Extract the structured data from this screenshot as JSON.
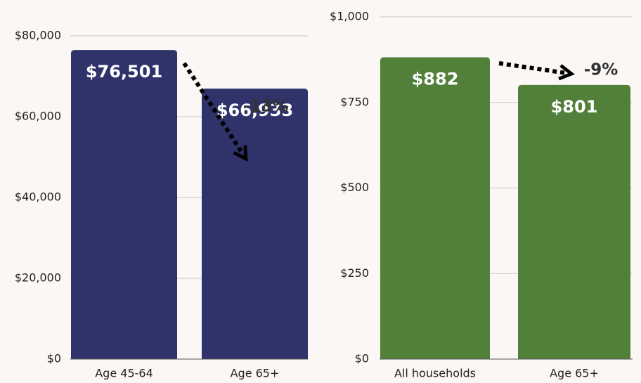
{
  "chart_data": [
    {
      "type": "bar",
      "categories": [
        "Age 45-64",
        "Age 65+"
      ],
      "values": [
        76501,
        66933
      ],
      "value_labels": [
        "$76,501",
        "$66,933"
      ],
      "color": "#2f336a",
      "ylim": [
        0,
        80000
      ],
      "yticks": [
        {
          "value": 0,
          "label": "$0"
        },
        {
          "value": 20000,
          "label": "$20,000"
        },
        {
          "value": 40000,
          "label": "$40,000"
        },
        {
          "value": 60000,
          "label": "$60,000"
        },
        {
          "value": 80000,
          "label": "$80,000"
        }
      ],
      "grid": true,
      "annotation": "-13%"
    },
    {
      "type": "bar",
      "categories": [
        "All households",
        "Age 65+"
      ],
      "values": [
        882,
        801
      ],
      "value_labels": [
        "$882",
        "$801"
      ],
      "color": "#52803a",
      "ylim": [
        0,
        1000
      ],
      "yticks": [
        {
          "value": 0,
          "label": "$0"
        },
        {
          "value": 250,
          "label": "$250"
        },
        {
          "value": 500,
          "label": "$500"
        },
        {
          "value": 750,
          "label": "$750"
        },
        {
          "value": 1000,
          "label": "$1,000"
        }
      ],
      "grid": true,
      "annotation": "-9%"
    }
  ]
}
